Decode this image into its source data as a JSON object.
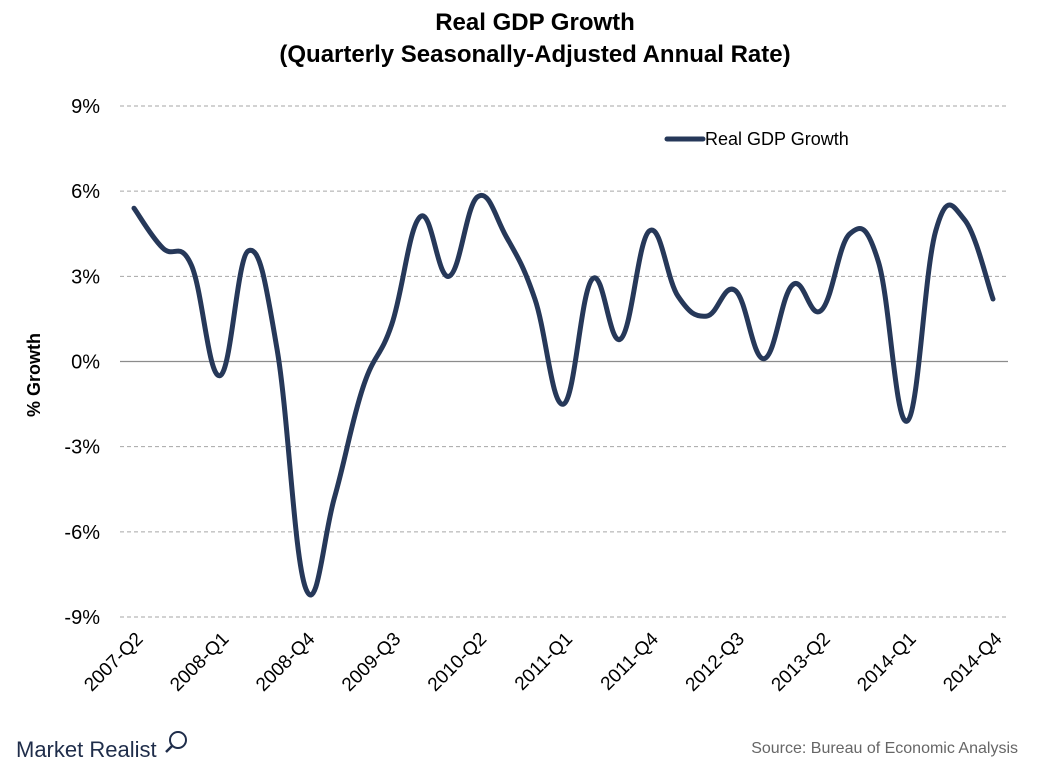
{
  "chart_data": {
    "type": "line",
    "title": "Real GDP Growth",
    "subtitle": "(Quarterly Seasonally-Adjusted Annual Rate)",
    "ylabel": "% Growth",
    "xlabel": "",
    "ylim": [
      -9,
      9
    ],
    "yticks": [
      9,
      6,
      3,
      0,
      -3,
      -6,
      -9
    ],
    "ytick_labels": [
      "9%",
      "6%",
      "3%",
      "0%",
      "-3%",
      "-6%",
      "-9%"
    ],
    "x": [
      "2007-Q2",
      "2007-Q3",
      "2007-Q4",
      "2008-Q1",
      "2008-Q2",
      "2008-Q3",
      "2008-Q4",
      "2009-Q1",
      "2009-Q2",
      "2009-Q3",
      "2009-Q4",
      "2010-Q1",
      "2010-Q2",
      "2010-Q3",
      "2010-Q4",
      "2011-Q1",
      "2011-Q2",
      "2011-Q3",
      "2011-Q4",
      "2012-Q1",
      "2012-Q2",
      "2012-Q3",
      "2012-Q4",
      "2013-Q1",
      "2013-Q2",
      "2013-Q3",
      "2013-Q4",
      "2014-Q1",
      "2014-Q2",
      "2014-Q3",
      "2014-Q4"
    ],
    "x_tick_labels": [
      "2007-Q2",
      "2008-Q1",
      "2008-Q4",
      "2009-Q3",
      "2010-Q2",
      "2011-Q1",
      "2011-Q4",
      "2012-Q3",
      "2013-Q2",
      "2014-Q1",
      "2014-Q4"
    ],
    "series": [
      {
        "name": "Real GDP Growth",
        "color": "#263859",
        "values": [
          5.4,
          4.0,
          3.4,
          -0.5,
          3.9,
          0.4,
          -8.0,
          -4.8,
          -0.9,
          1.3,
          5.1,
          3.0,
          5.8,
          4.4,
          2.2,
          -1.5,
          2.9,
          0.8,
          4.6,
          2.3,
          1.6,
          2.5,
          0.1,
          2.7,
          1.8,
          4.5,
          3.5,
          -2.1,
          4.6,
          5.0,
          2.2
        ]
      }
    ],
    "grid": true,
    "legend_position": "top-right"
  },
  "source": "Source: Bureau of Economic Analysis",
  "brand": "Market Realist",
  "colors": {
    "line": "#263859",
    "grid": "#a6a6a6",
    "zero_line": "#8c8c8c",
    "brand": "#1f2d4a"
  }
}
